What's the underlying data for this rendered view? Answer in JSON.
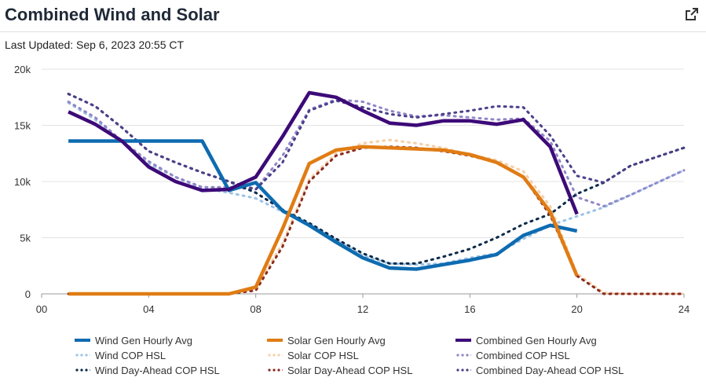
{
  "header": {
    "title": "Combined Wind and Solar",
    "external_icon": "external-link-icon"
  },
  "last_updated": "Last Updated: Sep 6, 2023 20:55 CT",
  "colors": {
    "wind": "#0e6bb0",
    "wind_cop": "#9cc3e6",
    "wind_da": "#0b2a4a",
    "solar": "#e07c14",
    "solar_cop": "#f6cfa6",
    "solar_da": "#8b2a1e",
    "combined": "#3d0a78",
    "combined_cop": "#9187c8",
    "combined_da": "#4b3f8a"
  },
  "chart_data": {
    "type": "line",
    "ylim": [
      0,
      20000
    ],
    "xlim": [
      0,
      24
    ],
    "x_ticks": [
      "00",
      "04",
      "08",
      "12",
      "16",
      "20",
      "24"
    ],
    "y_ticks": [
      "0",
      "5k",
      "10k",
      "15k",
      "20k"
    ],
    "grid": "horizontal",
    "legend_position": "bottom",
    "series": [
      {
        "name": "Wind Gen Hourly Avg",
        "key": "wind",
        "style": "solid",
        "x": [
          1,
          2,
          3,
          4,
          5,
          6,
          7,
          8,
          9,
          10,
          11,
          12,
          13,
          14,
          15,
          16,
          17,
          18,
          19,
          20
        ],
        "y": [
          13600,
          13600,
          13600,
          13600,
          13600,
          13600,
          9200,
          9900,
          7400,
          6100,
          4600,
          3200,
          2300,
          2200,
          2600,
          3000,
          3500,
          5200,
          6100,
          5600
        ]
      },
      {
        "name": "Solar Gen Hourly Avg",
        "key": "solar",
        "style": "solid",
        "x": [
          1,
          2,
          3,
          4,
          5,
          6,
          7,
          8,
          9,
          10,
          11,
          12,
          13,
          14,
          15,
          16,
          17,
          18,
          19,
          20
        ],
        "y": [
          0,
          0,
          0,
          0,
          0,
          0,
          0,
          600,
          5800,
          11600,
          12800,
          13100,
          13000,
          12900,
          12800,
          12400,
          11700,
          10400,
          7300,
          1600
        ]
      },
      {
        "name": "Combined Gen Hourly Avg",
        "key": "combined",
        "style": "solid",
        "x": [
          1,
          2,
          3,
          4,
          5,
          6,
          7,
          8,
          9,
          10,
          11,
          12,
          13,
          14,
          15,
          16,
          17,
          18,
          19,
          20
        ],
        "y": [
          16200,
          15100,
          13600,
          11300,
          10000,
          9200,
          9300,
          10400,
          14000,
          17900,
          17500,
          16300,
          15200,
          15000,
          15400,
          15400,
          15100,
          15500,
          13100,
          7100
        ]
      },
      {
        "name": "Wind COP HSL",
        "key": "wind_cop",
        "style": "dotted",
        "x": [
          1,
          2,
          3,
          4,
          5,
          6,
          7,
          8,
          9,
          10,
          11,
          12,
          13,
          14,
          15,
          16,
          17,
          18,
          19,
          20,
          21,
          22,
          23,
          24
        ],
        "y": [
          17000,
          15500,
          13600,
          11600,
          10400,
          9400,
          9000,
          8500,
          7300,
          6200,
          4800,
          3400,
          2700,
          2600,
          2700,
          3200,
          3600,
          4900,
          6100,
          6900,
          7700,
          8800,
          9900,
          11000
        ]
      },
      {
        "name": "Solar COP HSL",
        "key": "solar_cop",
        "style": "dotted",
        "x": [
          1,
          2,
          3,
          4,
          5,
          6,
          7,
          8,
          9,
          10,
          11,
          12,
          13,
          14,
          15,
          16,
          17,
          18,
          19,
          20,
          21,
          22,
          23,
          24
        ],
        "y": [
          0,
          0,
          0,
          0,
          0,
          0,
          0,
          500,
          4500,
          10200,
          12500,
          13400,
          13700,
          13400,
          13000,
          12400,
          11900,
          10900,
          7800,
          1800,
          100,
          0,
          0,
          0
        ]
      },
      {
        "name": "Combined COP HSL",
        "key": "combined_cop",
        "style": "dotted",
        "x": [
          1,
          2,
          3,
          4,
          5,
          6,
          7,
          8,
          9,
          10,
          11,
          12,
          13,
          14,
          15,
          16,
          17,
          18,
          19,
          20,
          21,
          22,
          23,
          24
        ],
        "y": [
          17100,
          15700,
          13600,
          11800,
          10400,
          9500,
          9500,
          9300,
          12300,
          16400,
          17300,
          17100,
          16300,
          15800,
          15900,
          15700,
          15500,
          15600,
          13600,
          8600,
          7800,
          8800,
          9900,
          11000
        ]
      },
      {
        "name": "Wind Day-Ahead COP HSL",
        "key": "wind_da",
        "style": "dotted",
        "x": [
          1,
          2,
          3,
          4,
          5,
          6,
          7,
          8,
          9,
          10,
          11,
          12,
          13,
          14,
          15,
          16,
          17,
          18,
          19,
          20,
          21,
          22,
          23,
          24
        ],
        "y": [
          17800,
          16700,
          14800,
          12700,
          11700,
          10800,
          10000,
          9000,
          7500,
          6300,
          4900,
          3600,
          2700,
          2700,
          3300,
          4000,
          5000,
          6200,
          7100,
          8900,
          9900,
          11400,
          12200,
          13000
        ]
      },
      {
        "name": "Solar Day-Ahead COP HSL",
        "key": "solar_da",
        "style": "dotted",
        "x": [
          1,
          2,
          3,
          4,
          5,
          6,
          7,
          8,
          9,
          10,
          11,
          12,
          13,
          14,
          15,
          16,
          17,
          18,
          19,
          20,
          21,
          22,
          23,
          24
        ],
        "y": [
          0,
          0,
          0,
          0,
          0,
          0,
          0,
          300,
          4200,
          10000,
          12300,
          13000,
          13100,
          13000,
          12700,
          12300,
          11700,
          10400,
          7000,
          1600,
          0,
          0,
          0,
          0
        ]
      },
      {
        "name": "Combined Day-Ahead COP HSL",
        "key": "combined_da",
        "style": "dotted",
        "x": [
          1,
          2,
          3,
          4,
          5,
          6,
          7,
          8,
          9,
          10,
          11,
          12,
          13,
          14,
          15,
          16,
          17,
          18,
          19,
          20,
          21,
          22,
          23,
          24
        ],
        "y": [
          17800,
          16700,
          14800,
          12700,
          11700,
          10800,
          10000,
          9300,
          11700,
          16300,
          17200,
          16600,
          16000,
          15700,
          16000,
          16300,
          16700,
          16600,
          14100,
          10500,
          9900,
          11400,
          12200,
          13000
        ]
      }
    ]
  }
}
